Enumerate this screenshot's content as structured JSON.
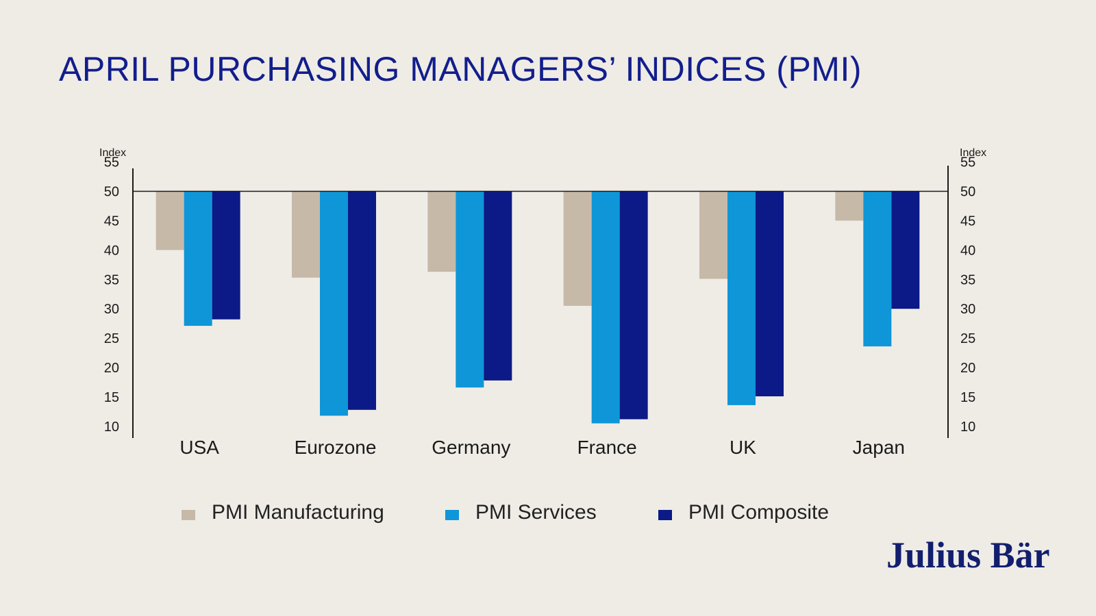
{
  "title": "APRIL PURCHASING MANAGERS’ INDICES (PMI)",
  "brand": "Julius Bär",
  "colors": {
    "background": "#efece6",
    "title": "#121e8c",
    "manufacturing": "#c6b9a8",
    "services": "#0f96d8",
    "composite": "#0b1a86"
  },
  "chart_data": {
    "type": "bar",
    "title": "APRIL PURCHASING MANAGERS’ INDICES (PMI)",
    "ylabel_left": "Index",
    "ylabel_right": "Index",
    "ylim": [
      8,
      56
    ],
    "baseline": 50,
    "yticks": [
      55,
      50,
      45,
      40,
      35,
      30,
      25,
      20,
      15,
      10
    ],
    "categories": [
      "USA",
      "Eurozone",
      "Germany",
      "France",
      "UK",
      "Japan"
    ],
    "series": [
      {
        "name": "PMI Manufacturing",
        "color": "#c6b9a8",
        "values": [
          40.0,
          35.3,
          36.3,
          30.5,
          35.1,
          45.0
        ]
      },
      {
        "name": "PMI Services",
        "color": "#0f96d8",
        "values": [
          27.1,
          11.8,
          16.6,
          10.5,
          13.6,
          23.6
        ]
      },
      {
        "name": "PMI Composite",
        "color": "#0b1a86",
        "values": [
          28.2,
          12.8,
          17.8,
          11.2,
          15.1,
          30.0
        ]
      }
    ],
    "legend_position": "bottom"
  }
}
